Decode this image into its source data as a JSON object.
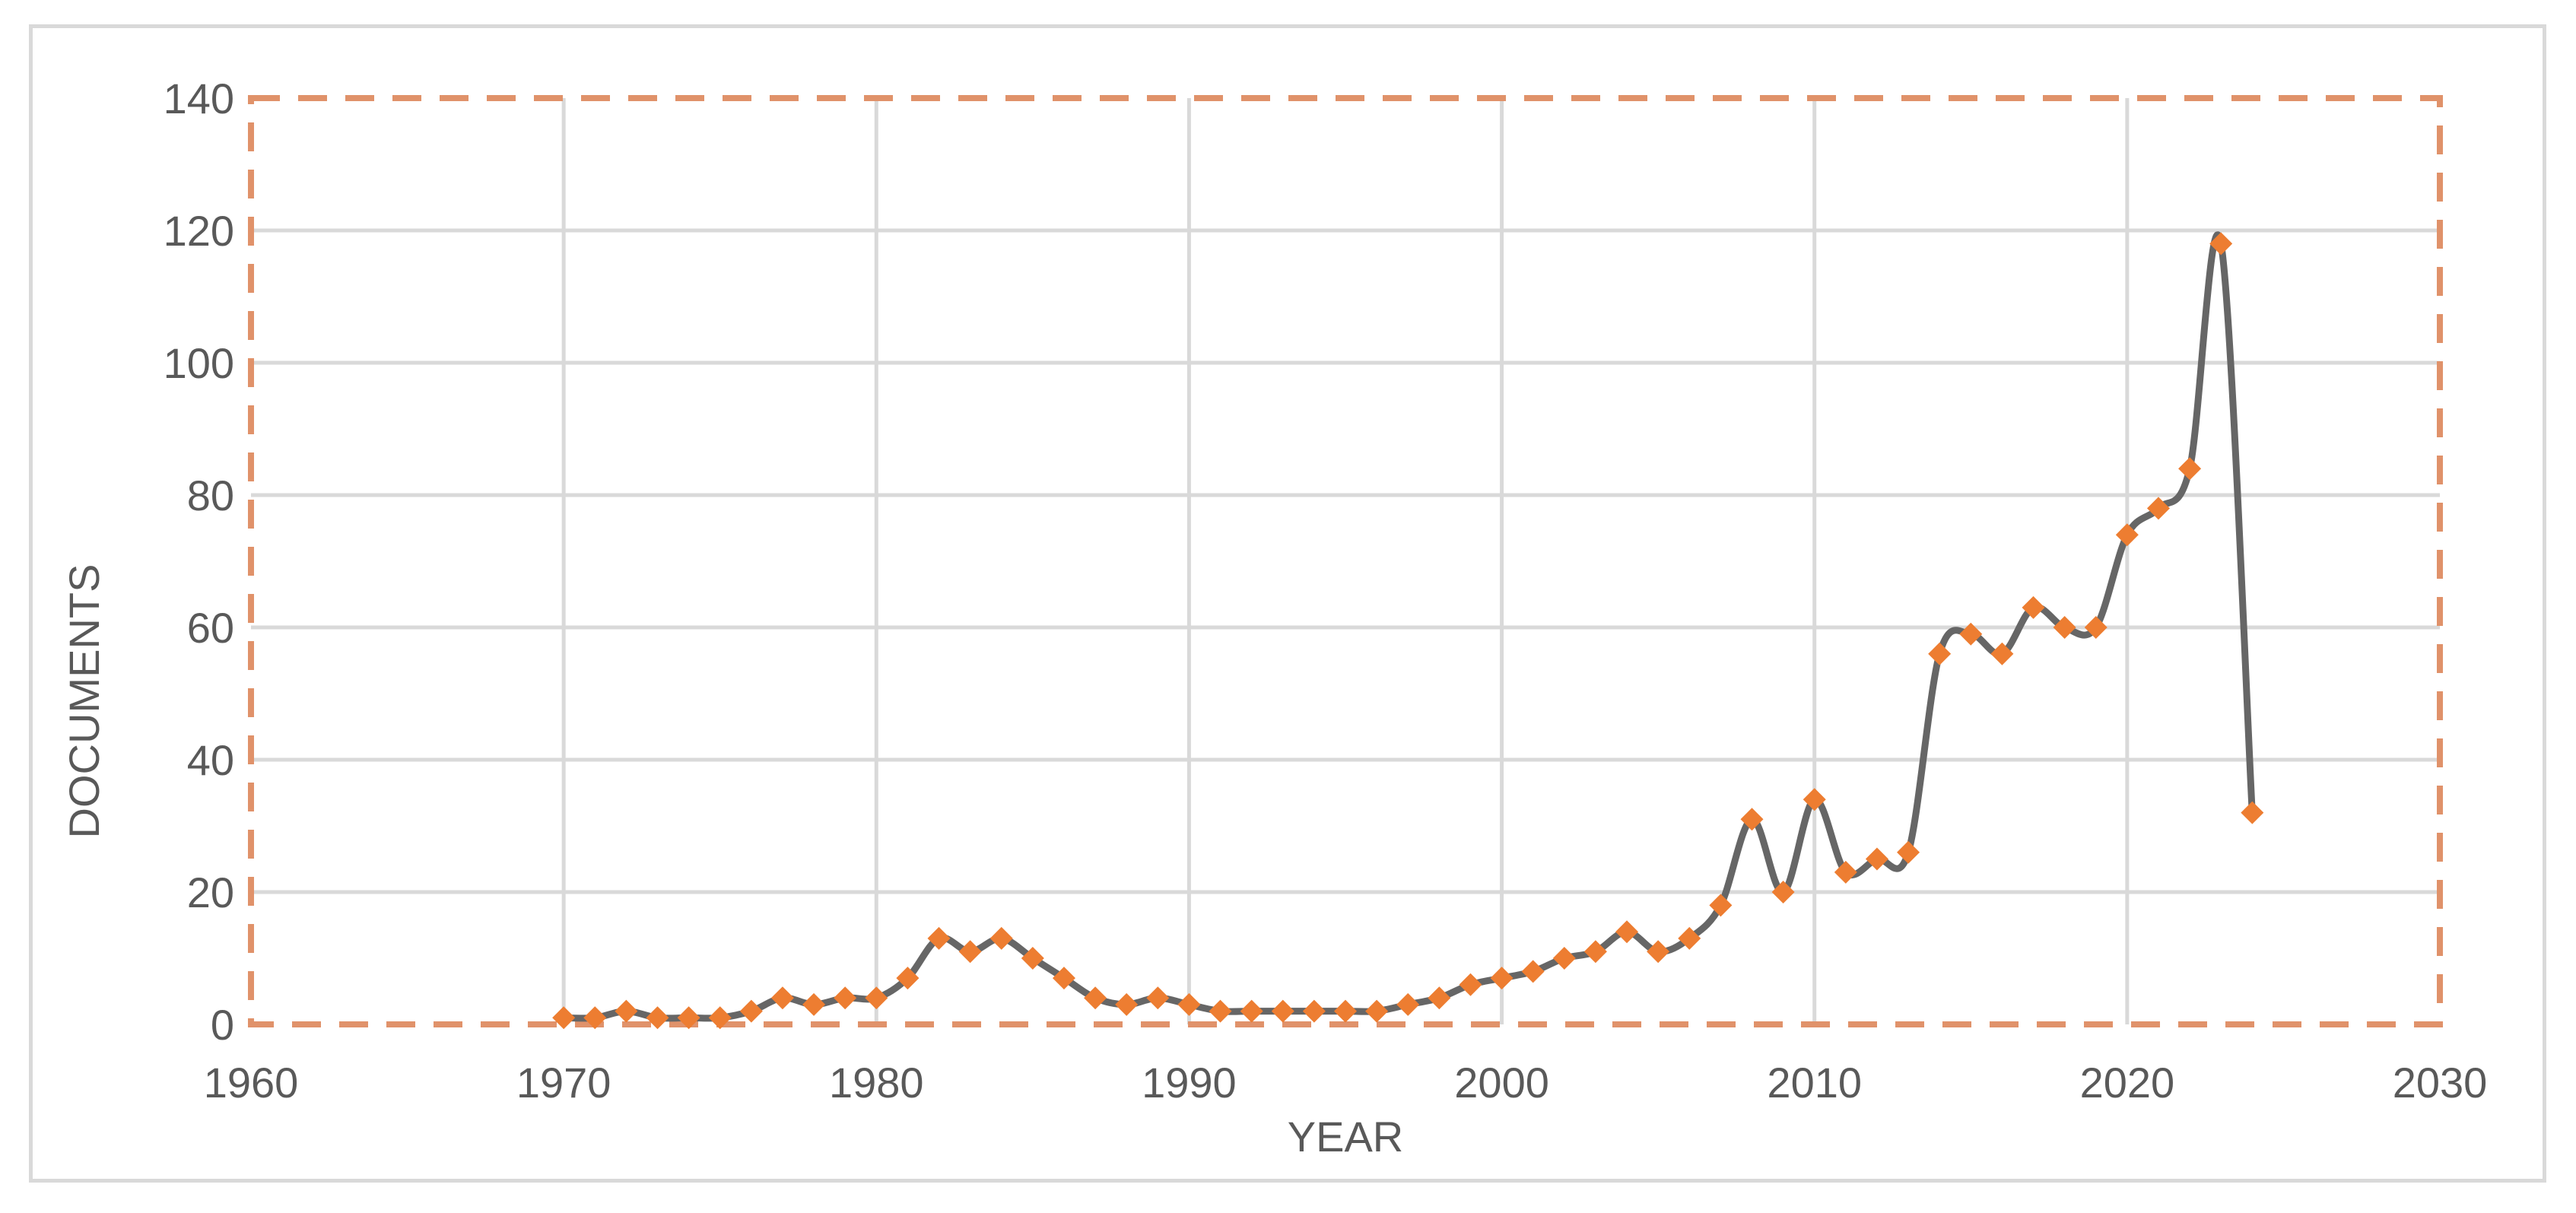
{
  "chart_data": {
    "type": "line",
    "title": "",
    "xlabel": "YEAR",
    "ylabel": "DOCUMENTS",
    "xlim": [
      1960,
      2030
    ],
    "ylim": [
      0,
      140
    ],
    "x_ticks": [
      1960,
      1970,
      1980,
      1990,
      2000,
      2010,
      2020,
      2030
    ],
    "y_ticks": [
      0,
      20,
      40,
      60,
      80,
      100,
      120,
      140
    ],
    "grid": true,
    "legend": "none",
    "smooth": true,
    "colors": {
      "line": "#666666",
      "marker": "#ed7d31",
      "plot_border": "#e0926a",
      "grid": "#d9d9d9",
      "frame": "#d9d9d9",
      "text": "#595959"
    },
    "series": [
      {
        "marker": "diamond",
        "x": [
          1970,
          1971,
          1972,
          1973,
          1974,
          1975,
          1976,
          1977,
          1978,
          1979,
          1980,
          1981,
          1982,
          1983,
          1984,
          1985,
          1986,
          1987,
          1988,
          1989,
          1990,
          1991,
          1992,
          1993,
          1994,
          1995,
          1996,
          1997,
          1998,
          1999,
          2000,
          2001,
          2002,
          2003,
          2004,
          2005,
          2006,
          2007,
          2008,
          2009,
          2010,
          2011,
          2012,
          2013,
          2014,
          2015,
          2016,
          2017,
          2018,
          2019,
          2020,
          2021,
          2022,
          2023,
          2024
        ],
        "y": [
          1,
          1,
          2,
          1,
          1,
          1,
          2,
          4,
          3,
          4,
          4,
          7,
          13,
          11,
          13,
          10,
          7,
          4,
          3,
          4,
          3,
          2,
          2,
          2,
          2,
          2,
          2,
          3,
          4,
          6,
          7,
          8,
          10,
          11,
          14,
          11,
          13,
          18,
          31,
          20,
          34,
          23,
          25,
          26,
          56,
          59,
          56,
          63,
          60,
          60,
          74,
          78,
          84,
          118,
          32
        ]
      }
    ]
  }
}
